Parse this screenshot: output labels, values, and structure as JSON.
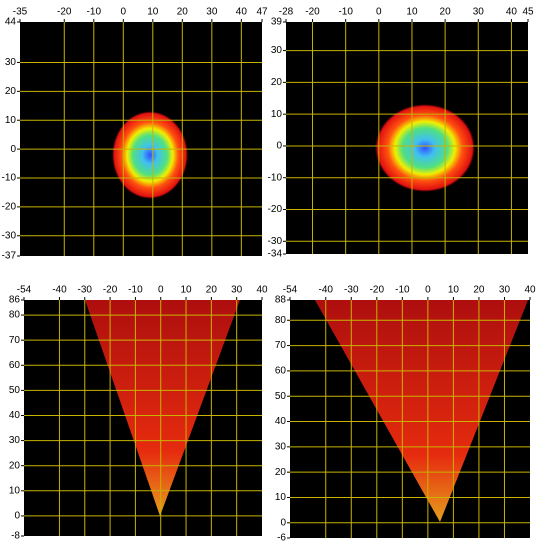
{
  "panels": [
    {
      "xticks": [
        -35,
        -20,
        -10,
        0,
        10,
        20,
        30,
        40,
        47
      ],
      "yticks": [
        44,
        30,
        20,
        10,
        0,
        -10,
        -20,
        -30,
        -37
      ]
    },
    {
      "xticks": [
        -28,
        -20,
        -10,
        0,
        10,
        20,
        30,
        40,
        45
      ],
      "yticks": [
        39,
        30,
        20,
        10,
        0,
        -10,
        -20,
        -30,
        -34
      ]
    },
    {
      "xticks": [
        -54,
        -40,
        -30,
        -20,
        -10,
        0,
        10,
        20,
        30,
        40
      ],
      "yticks": [
        86,
        80,
        70,
        60,
        50,
        40,
        30,
        20,
        10,
        0,
        -8
      ]
    },
    {
      "xticks": [
        -54,
        -40,
        -30,
        -20,
        -10,
        0,
        10,
        20,
        30,
        40
      ],
      "yticks": [
        88,
        80,
        70,
        60,
        50,
        40,
        30,
        20,
        10,
        0,
        -6
      ]
    }
  ]
}
